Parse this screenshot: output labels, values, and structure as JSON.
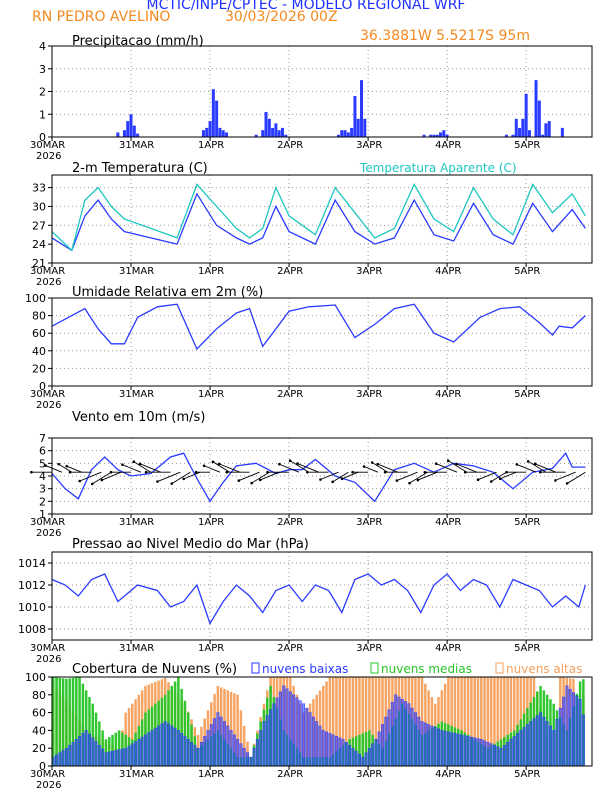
{
  "header": {
    "title": "MCTIC/INPE/CPTEC - MODELO REGIONAL WRF",
    "station": "RN PEDRO AVELINO",
    "run": "30/03/2026 00Z",
    "coords": "36.3881W 5.5217S 95m"
  },
  "colors": {
    "blue": "#2a3bff",
    "cyan": "#1fc7c0",
    "orange": "#f5a05c",
    "green": "#26c426",
    "title_orange": "#f5891f",
    "title_blue": "#1f32ff"
  },
  "x_ticks": [
    {
      "label": "30MAR",
      "sub": "2026",
      "day": 0
    },
    {
      "label": "31MAR",
      "sub": "",
      "day": 1
    },
    {
      "label": "1APR",
      "sub": "",
      "day": 2
    },
    {
      "label": "2APR",
      "sub": "",
      "day": 3
    },
    {
      "label": "3APR",
      "sub": "",
      "day": 4
    },
    {
      "label": "4APR",
      "sub": "",
      "day": 5
    },
    {
      "label": "5APR",
      "sub": "",
      "day": 6
    }
  ],
  "chart_data": [
    {
      "id": "precip",
      "type": "bar",
      "title": "Precipitacao (mm/h)",
      "ylim": [
        0,
        4
      ],
      "yticks": [
        0,
        1,
        2,
        3,
        4
      ],
      "grid": true,
      "x_hours_from_start": [
        20,
        22,
        23,
        24,
        25,
        26,
        46,
        47,
        48,
        49,
        50,
        51,
        52,
        53,
        62,
        64,
        65,
        66,
        67,
        68,
        69,
        70,
        71,
        87,
        88,
        89,
        90,
        91,
        92,
        93,
        94,
        95,
        113,
        115,
        116,
        117,
        118,
        119,
        120,
        138,
        140,
        141,
        142,
        143,
        144,
        145,
        147,
        148,
        149,
        150,
        151,
        155
      ],
      "values": [
        0.2,
        0.3,
        0.7,
        1.0,
        0.5,
        0.15,
        0.3,
        0.4,
        0.7,
        2.1,
        1.6,
        0.4,
        0.3,
        0.2,
        0.1,
        0.3,
        1.1,
        0.8,
        0.4,
        0.6,
        0.3,
        0.4,
        0.1,
        0.1,
        0.3,
        0.3,
        0.2,
        0.4,
        1.8,
        0.8,
        2.5,
        0.8,
        0.1,
        0.1,
        0.1,
        0.1,
        0.2,
        0.3,
        0.1,
        0.1,
        0.1,
        0.8,
        0.4,
        0.8,
        1.9,
        0.3,
        2.5,
        1.6,
        0.1,
        0.6,
        0.7,
        0.4
      ]
    },
    {
      "id": "temperature",
      "type": "line",
      "title": "2-m Temperatura (C)",
      "ylim": [
        21,
        35
      ],
      "yticks": [
        21,
        24,
        27,
        30,
        33
      ],
      "grid": true,
      "series": [
        {
          "name": "2-m Temperatura (C)",
          "color": "#2a3bff",
          "x": [
            0,
            6,
            10,
            14,
            18,
            22,
            30,
            38,
            44,
            50,
            56,
            60,
            64,
            68,
            72,
            80,
            86,
            92,
            98,
            104,
            110,
            116,
            122,
            128,
            134,
            140,
            146,
            152,
            158,
            162
          ],
          "y": [
            25.0,
            23.0,
            28.5,
            31.0,
            28.0,
            26.0,
            25.0,
            24.0,
            32.0,
            27.0,
            25.0,
            24.0,
            25.0,
            30.0,
            26.0,
            24.0,
            31.0,
            26.0,
            24.0,
            25.0,
            31.0,
            25.5,
            24.5,
            30.5,
            25.5,
            24.0,
            30.5,
            26.0,
            29.5,
            26.5
          ]
        },
        {
          "name": "Temperatura Aparente (C)",
          "color": "#1fc7c0",
          "x": [
            0,
            6,
            10,
            14,
            18,
            22,
            30,
            38,
            44,
            50,
            56,
            60,
            64,
            68,
            72,
            80,
            86,
            92,
            98,
            104,
            110,
            116,
            122,
            128,
            134,
            140,
            146,
            152,
            158,
            162
          ],
          "y": [
            26.0,
            23.0,
            31.0,
            33.0,
            30.0,
            28.0,
            26.5,
            25.0,
            33.5,
            30.0,
            26.5,
            25.0,
            26.5,
            33.0,
            28.5,
            25.5,
            33.0,
            29.0,
            25.0,
            26.5,
            33.5,
            28.0,
            26.0,
            33.0,
            28.0,
            25.5,
            33.5,
            29.0,
            32.0,
            28.5
          ]
        }
      ]
    },
    {
      "id": "humidity",
      "type": "line",
      "title": "Umidade Relativa em 2m (%)",
      "ylim": [
        0,
        100
      ],
      "yticks": [
        0,
        20,
        40,
        60,
        80,
        100
      ],
      "grid": true,
      "series": [
        {
          "name": "Umidade Relativa",
          "color": "#2a3bff",
          "x": [
            0,
            6,
            10,
            14,
            18,
            22,
            26,
            32,
            38,
            44,
            50,
            56,
            60,
            64,
            68,
            72,
            78,
            86,
            92,
            98,
            104,
            110,
            116,
            122,
            130,
            136,
            142,
            148,
            152,
            154,
            158,
            162
          ],
          "y": [
            68,
            80,
            88,
            65,
            48,
            48,
            78,
            90,
            93,
            42,
            65,
            83,
            88,
            45,
            65,
            85,
            90,
            92,
            55,
            70,
            88,
            93,
            60,
            50,
            78,
            88,
            90,
            72,
            58,
            68,
            66,
            80
          ]
        }
      ]
    },
    {
      "id": "wind",
      "type": "line",
      "title": "Vento em 10m (m/s)",
      "ylim": [
        1,
        7
      ],
      "yticks": [
        1,
        2,
        3,
        4,
        5,
        6,
        7
      ],
      "grid": true,
      "series": [
        {
          "name": "Vento em 10m (m/s)",
          "color": "#2a3bff",
          "x": [
            0,
            4,
            8,
            12,
            16,
            20,
            24,
            30,
            36,
            40,
            44,
            48,
            52,
            56,
            62,
            68,
            72,
            76,
            80,
            86,
            92,
            98,
            104,
            110,
            116,
            122,
            128,
            134,
            140,
            146,
            152,
            156,
            158,
            162
          ],
          "y": [
            4.2,
            3.0,
            2.2,
            4.5,
            5.5,
            4.5,
            4.0,
            4.2,
            5.5,
            5.8,
            3.8,
            2.0,
            3.5,
            4.8,
            5.0,
            4.2,
            4.5,
            4.5,
            5.3,
            4.0,
            3.5,
            2.0,
            4.5,
            5.0,
            4.3,
            5.0,
            4.8,
            4.3,
            3.0,
            4.3,
            4.6,
            5.8,
            4.7,
            4.7
          ]
        }
      ]
    },
    {
      "id": "pressure",
      "type": "line",
      "title": "Pressao ao Nivel Medio do Mar (hPa)",
      "ylim": [
        1007,
        1015
      ],
      "yticks": [
        1008,
        1010,
        1012,
        1014
      ],
      "grid": true,
      "series": [
        {
          "name": "Pressao",
          "color": "#2a3bff",
          "x": [
            0,
            4,
            8,
            12,
            16,
            20,
            26,
            32,
            36,
            40,
            44,
            48,
            52,
            56,
            60,
            64,
            68,
            72,
            76,
            80,
            84,
            88,
            92,
            96,
            100,
            104,
            108,
            112,
            116,
            120,
            124,
            128,
            132,
            136,
            140,
            144,
            148,
            152,
            156,
            160,
            162
          ],
          "y": [
            1012.5,
            1012.0,
            1011.0,
            1012.5,
            1013.0,
            1010.5,
            1012.0,
            1011.5,
            1010.0,
            1010.5,
            1012.0,
            1008.5,
            1010.5,
            1012.0,
            1011.0,
            1009.5,
            1011.5,
            1012.0,
            1010.5,
            1012.0,
            1011.5,
            1009.5,
            1012.5,
            1013.0,
            1012.0,
            1012.5,
            1011.5,
            1009.5,
            1012.0,
            1013.0,
            1011.5,
            1012.5,
            1012.0,
            1010.0,
            1012.5,
            1012.0,
            1011.5,
            1010.0,
            1011.0,
            1010.0,
            1012.0
          ]
        }
      ]
    },
    {
      "id": "clouds",
      "type": "bar",
      "title": "Cobertura de Nuvens (%)",
      "ylim": [
        0,
        100
      ],
      "yticks": [
        0,
        20,
        40,
        60,
        80,
        100
      ],
      "grid": false,
      "legend": [
        "nuvens baixas",
        "nuvens medias",
        "nuvens altas"
      ],
      "series": [
        {
          "name": "nuvens altas",
          "color": "#f5a05c",
          "x": [
            0,
            10,
            20,
            22,
            28,
            34,
            40,
            44,
            50,
            56,
            60,
            66,
            72,
            76,
            84,
            90,
            96,
            100,
            106,
            112,
            116,
            120,
            124,
            128,
            132,
            136,
            140,
            146,
            152,
            154,
            158,
            160,
            162
          ],
          "values": [
            95,
            40,
            20,
            60,
            90,
            99,
            70,
            35,
            90,
            80,
            10,
            100,
            100,
            60,
            100,
            100,
            100,
            100,
            100,
            100,
            70,
            100,
            100,
            100,
            100,
            100,
            100,
            100,
            0,
            100,
            98,
            60,
            100
          ]
        },
        {
          "name": "nuvens medias",
          "color": "#26c426",
          "x": [
            0,
            4,
            8,
            12,
            16,
            20,
            24,
            28,
            34,
            38,
            44,
            50,
            56,
            60,
            66,
            70,
            76,
            84,
            90,
            96,
            100,
            106,
            112,
            118,
            124,
            132,
            140,
            148,
            152,
            156,
            160,
            162
          ],
          "values": [
            100,
            98,
            100,
            70,
            30,
            40,
            30,
            60,
            80,
            100,
            20,
            40,
            10,
            10,
            90,
            40,
            10,
            10,
            30,
            40,
            20,
            70,
            35,
            50,
            40,
            20,
            40,
            90,
            70,
            40,
            95,
            100
          ]
        },
        {
          "name": "nuvens baixas",
          "color": "#2a3bff",
          "x": [
            0,
            4,
            10,
            16,
            22,
            28,
            34,
            38,
            44,
            50,
            56,
            60,
            64,
            70,
            76,
            82,
            88,
            94,
            98,
            104,
            108,
            112,
            118,
            124,
            130,
            136,
            142,
            148,
            152,
            156,
            160,
            162
          ],
          "values": [
            10,
            20,
            40,
            15,
            20,
            35,
            50,
            40,
            20,
            60,
            30,
            10,
            50,
            90,
            70,
            40,
            30,
            10,
            30,
            80,
            70,
            50,
            40,
            35,
            30,
            20,
            40,
            60,
            40,
            90,
            75,
            40
          ]
        }
      ]
    }
  ]
}
